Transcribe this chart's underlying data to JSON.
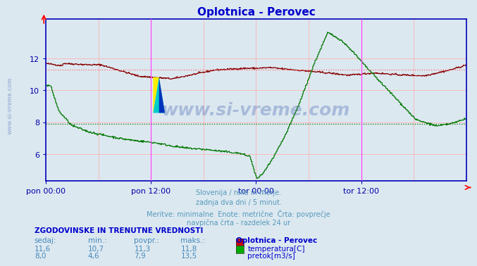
{
  "title": "Oplotnica - Perovec",
  "title_color": "#0000cc",
  "bg_color": "#dce8f0",
  "plot_bg_color": "#dce8f0",
  "x_ticks_labels": [
    "pon 00:00",
    "pon 12:00",
    "tor 00:00",
    "tor 12:00"
  ],
  "x_ticks_pos": [
    0.0,
    0.25,
    0.5,
    0.75
  ],
  "total_points": 576,
  "y_min": 4.3,
  "y_max": 14.5,
  "y_ticks": [
    6,
    8,
    10,
    12
  ],
  "grid_color": "#ffaaaa",
  "avg_line_temp": 11.3,
  "avg_line_flow": 7.9,
  "temp_color": "#880000",
  "flow_color": "#007700",
  "vline_color": "#ff44ff",
  "vline_positions": [
    0.25,
    0.75
  ],
  "axis_color": "#0000aa",
  "border_color": "#0000bb",
  "subtitle_lines": [
    "Slovenija / reke in morje.",
    "zadnja dva dni / 5 minut.",
    "Meritve: minimalne  Enote: metrične  Črta: povprečje",
    "navpična črta - razdelek 24 ur"
  ],
  "subtitle_color": "#5599bb",
  "table_header": "ZGODOVINSKE IN TRENUTNE VREDNOSTI",
  "table_header_color": "#0000cc",
  "table_cols": [
    "sedaj:",
    "min.:",
    "povpr.:",
    "maks.:"
  ],
  "table_col_color": "#4488bb",
  "table_rows": [
    {
      "values": [
        "11,6",
        "10,7",
        "11,3",
        "11,8"
      ],
      "label": "temperatura[C]",
      "color": "#cc0000"
    },
    {
      "values": [
        "8,0",
        "4,6",
        "7,9",
        "13,5"
      ],
      "label": "pretok[m3/s]",
      "color": "#00aa00"
    }
  ],
  "station_label": "Oplotnica - Perovec",
  "watermark": "www.si-vreme.com"
}
